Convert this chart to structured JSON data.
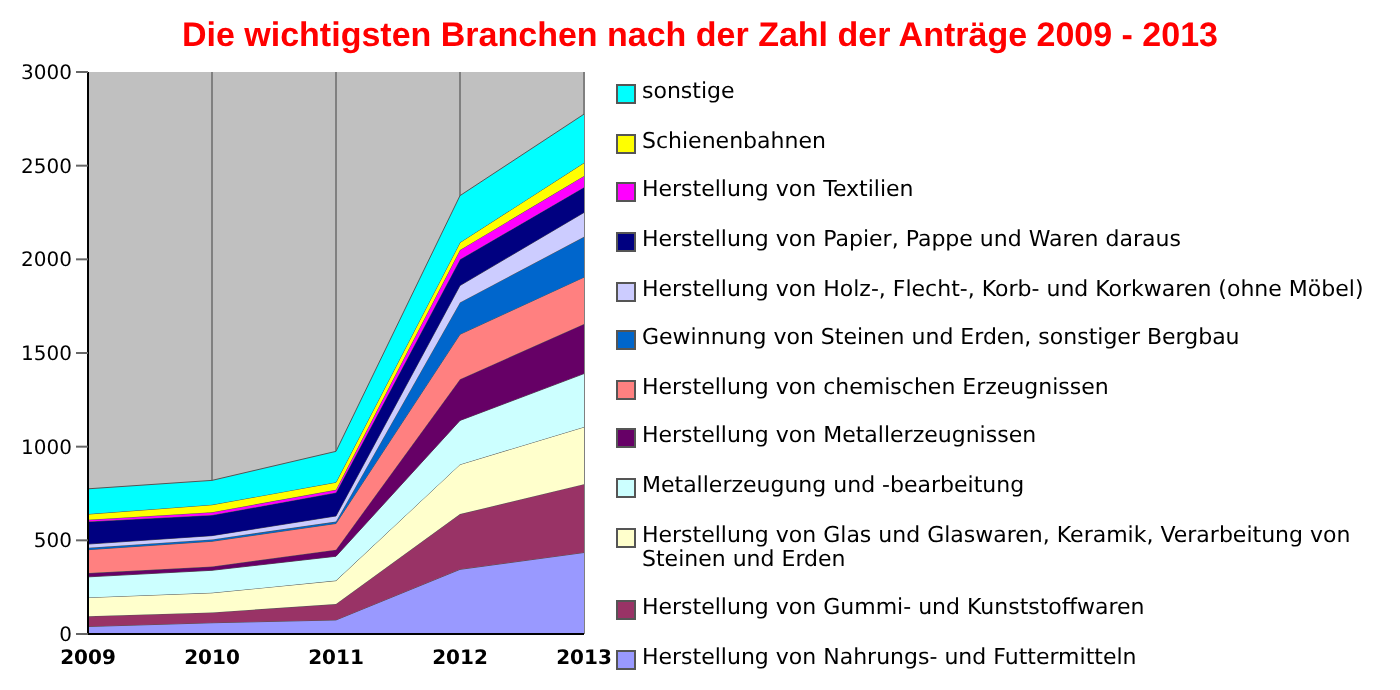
{
  "chart_data": {
    "type": "area",
    "stacked": true,
    "title": "Die wichtigsten Branchen nach der Zahl der Anträge 2009 - 2013",
    "categories": [
      "2009",
      "2010",
      "2011",
      "2012",
      "2013"
    ],
    "ylim": [
      0,
      3000
    ],
    "yticks": [
      0,
      500,
      1000,
      1500,
      2000,
      2500,
      3000
    ],
    "grid": "x",
    "legend": "right",
    "series": [
      {
        "name": "Herstellung von Nahrungs- und Futtermitteln",
        "color": "#9999ff",
        "values": [
          40,
          60,
          75,
          345,
          435
        ]
      },
      {
        "name": "Herstellung von Gummi- und Kunststoffwaren",
        "color": "#993366",
        "values": [
          55,
          55,
          85,
          295,
          365
        ]
      },
      {
        "name": "Herstellung von Glas und Glaswaren, Keramik, Verarbeitung von Steinen und Erden",
        "color": "#ffffcc",
        "values": [
          100,
          105,
          125,
          265,
          305
        ]
      },
      {
        "name": "Metallerzeugung und -bearbeitung",
        "color": "#ccffff",
        "values": [
          110,
          120,
          130,
          235,
          285
        ]
      },
      {
        "name": "Herstellung von Metallerzeugnissen",
        "color": "#660066",
        "values": [
          20,
          20,
          35,
          220,
          265
        ]
      },
      {
        "name": "Herstellung von chemischen Erzeugnissen",
        "color": "#ff8080",
        "values": [
          125,
          135,
          140,
          240,
          250
        ]
      },
      {
        "name": "Gewinnung von Steinen und Erden, sonstiger Bergbau",
        "color": "#0066cc",
        "values": [
          10,
          10,
          10,
          170,
          215
        ]
      },
      {
        "name": "Herstellung von Holz-, Flecht-, Korb- und Korkwaren (ohne Möbel)",
        "color": "#ccccff",
        "values": [
          20,
          20,
          30,
          90,
          130
        ]
      },
      {
        "name": "Herstellung von Papier, Pappe und Waren daraus",
        "color": "#000080",
        "values": [
          120,
          110,
          125,
          140,
          135
        ]
      },
      {
        "name": "Herstellung von Textilien",
        "color": "#ff00ff",
        "values": [
          10,
          15,
          15,
          50,
          60
        ]
      },
      {
        "name": "Schienenbahnen",
        "color": "#ffff00",
        "values": [
          30,
          40,
          40,
          40,
          70
        ]
      },
      {
        "name": "sonstige",
        "color": "#00ffff",
        "values": [
          135,
          130,
          165,
          250,
          260
        ]
      }
    ]
  }
}
